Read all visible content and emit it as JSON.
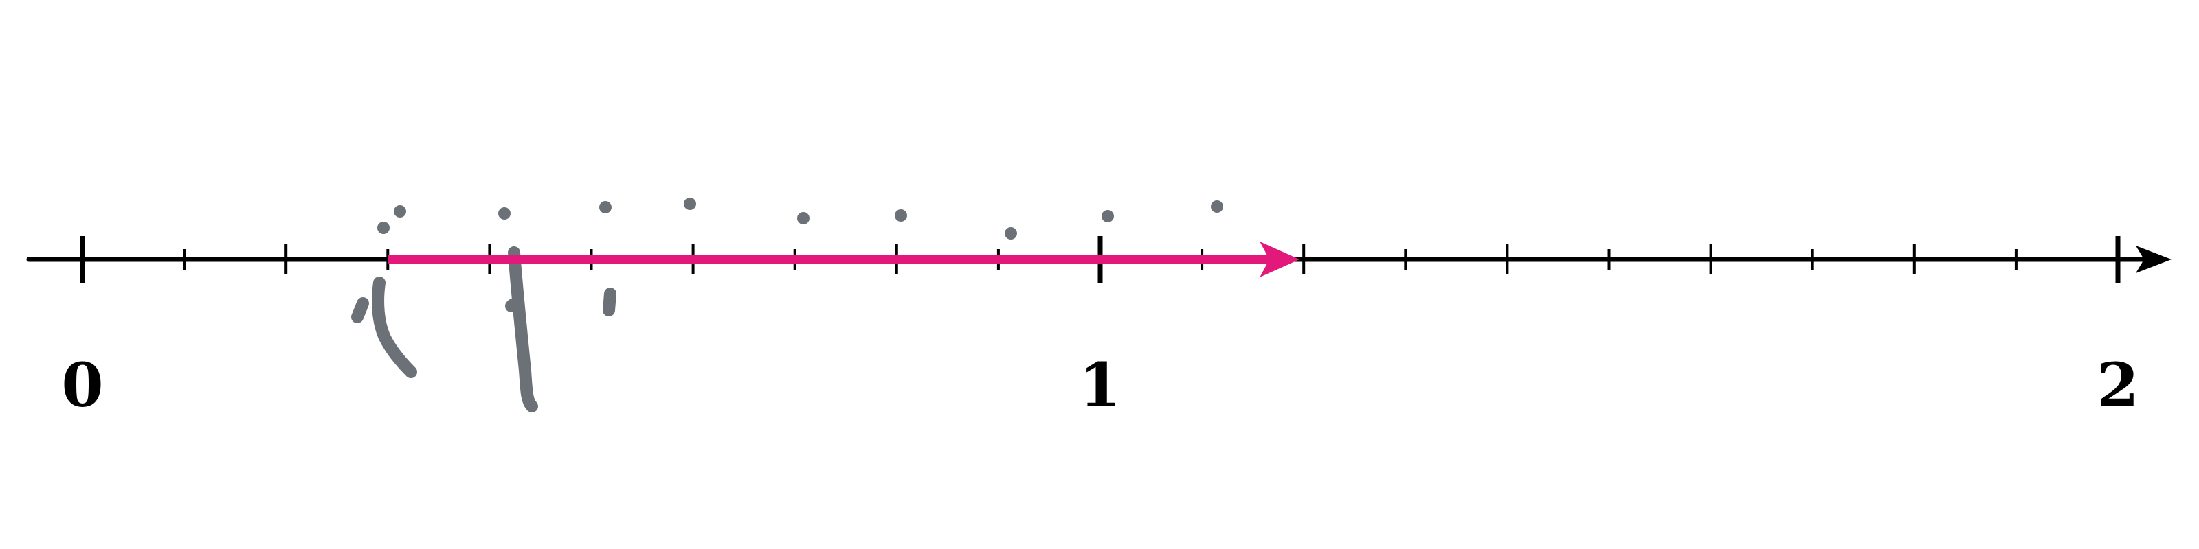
{
  "number_line": {
    "min": 0,
    "max": 2,
    "minor_step": 0.1,
    "axis_color": "#000000",
    "labels": [
      {
        "value": 0,
        "text": "0"
      },
      {
        "value": 1,
        "text": "1"
      },
      {
        "value": 2,
        "text": "2"
      }
    ]
  },
  "jump_arrow": {
    "from": 0.3,
    "to": 1.2,
    "color": "#e2197a"
  },
  "sketch": {
    "color": "#6b7177",
    "description_free": true
  }
}
